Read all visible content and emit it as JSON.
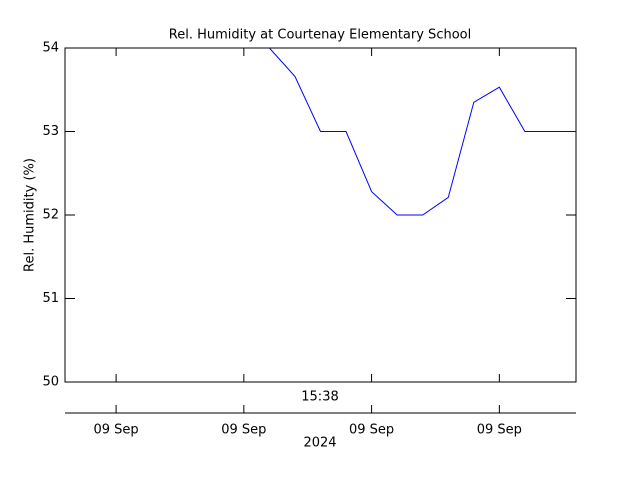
{
  "chart_data": {
    "type": "line",
    "title": "Rel. Humidity at Courtenay Elementary School",
    "y_label": "Rel. Humidity (%)",
    "x_label": "2024",
    "annotation": "15:38",
    "x": [
      8,
      9,
      10,
      11,
      12,
      13,
      14,
      15,
      16,
      17,
      18,
      19,
      20
    ],
    "series": [
      {
        "name": "Rel. Humidity",
        "color": "#0000ff",
        "values": [
          54.0,
          53.66,
          53.0,
          53.0,
          52.28,
          52.0,
          52.0,
          52.21,
          53.35,
          53.53,
          53.0,
          53.0,
          53.0
        ]
      }
    ],
    "xlim": [
      0,
      20
    ],
    "xticks": [
      {
        "value": 2,
        "label": "09 Sep"
      },
      {
        "value": 7,
        "label": "09 Sep"
      },
      {
        "value": 12,
        "label": "09 Sep"
      },
      {
        "value": 17,
        "label": "09 Sep"
      }
    ],
    "ylim": [
      50,
      54
    ],
    "yticks": [
      50,
      51,
      52,
      53,
      54
    ]
  }
}
